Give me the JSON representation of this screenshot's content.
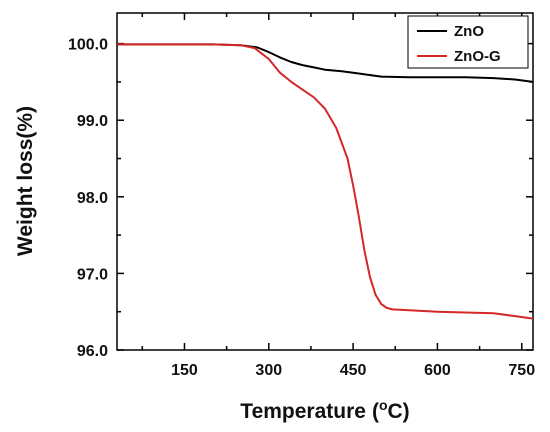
{
  "chart_data": {
    "type": "line",
    "xlabel": "Temperature",
    "xlabel_unit_prefix": "(",
    "xlabel_unit_degree": "o",
    "xlabel_unit_suffix": "C)",
    "ylabel": "Weight loss(%)",
    "xlim": [
      30,
      770
    ],
    "ylim": [
      96.0,
      100.4
    ],
    "x_ticks": [
      {
        "value": 150,
        "label": "150"
      },
      {
        "value": 300,
        "label": "300"
      },
      {
        "value": 450,
        "label": "450"
      },
      {
        "value": 600,
        "label": "600"
      },
      {
        "value": 750,
        "label": "750"
      }
    ],
    "y_ticks": [
      {
        "value": 96.0,
        "label": "96.0"
      },
      {
        "value": 97.0,
        "label": "97.0"
      },
      {
        "value": 98.0,
        "label": "98.0"
      },
      {
        "value": 99.0,
        "label": "99.0"
      },
      {
        "value": 100.0,
        "label": "100.0"
      }
    ],
    "legend_position": "top-right",
    "grid": false,
    "series": [
      {
        "name": "ZnO",
        "color": "#000000",
        "x": [
          30,
          100,
          200,
          250,
          280,
          300,
          320,
          340,
          360,
          380,
          400,
          430,
          460,
          500,
          550,
          600,
          650,
          700,
          740,
          770
        ],
        "y": [
          99.99,
          99.99,
          99.99,
          99.98,
          99.95,
          99.89,
          99.82,
          99.76,
          99.72,
          99.69,
          99.66,
          99.64,
          99.61,
          99.57,
          99.56,
          99.56,
          99.56,
          99.55,
          99.53,
          99.5
        ]
      },
      {
        "name": "ZnO-G",
        "color": "#d62728",
        "x": [
          30,
          100,
          200,
          250,
          275,
          300,
          320,
          340,
          360,
          380,
          400,
          420,
          440,
          450,
          460,
          470,
          480,
          490,
          500,
          510,
          520,
          550,
          600,
          650,
          700,
          740,
          770
        ],
        "y": [
          99.99,
          99.99,
          99.99,
          99.98,
          99.94,
          99.8,
          99.62,
          99.5,
          99.4,
          99.3,
          99.15,
          98.9,
          98.5,
          98.15,
          97.75,
          97.3,
          96.95,
          96.72,
          96.6,
          96.55,
          96.53,
          96.52,
          96.5,
          96.49,
          96.48,
          96.44,
          96.41
        ]
      }
    ]
  }
}
